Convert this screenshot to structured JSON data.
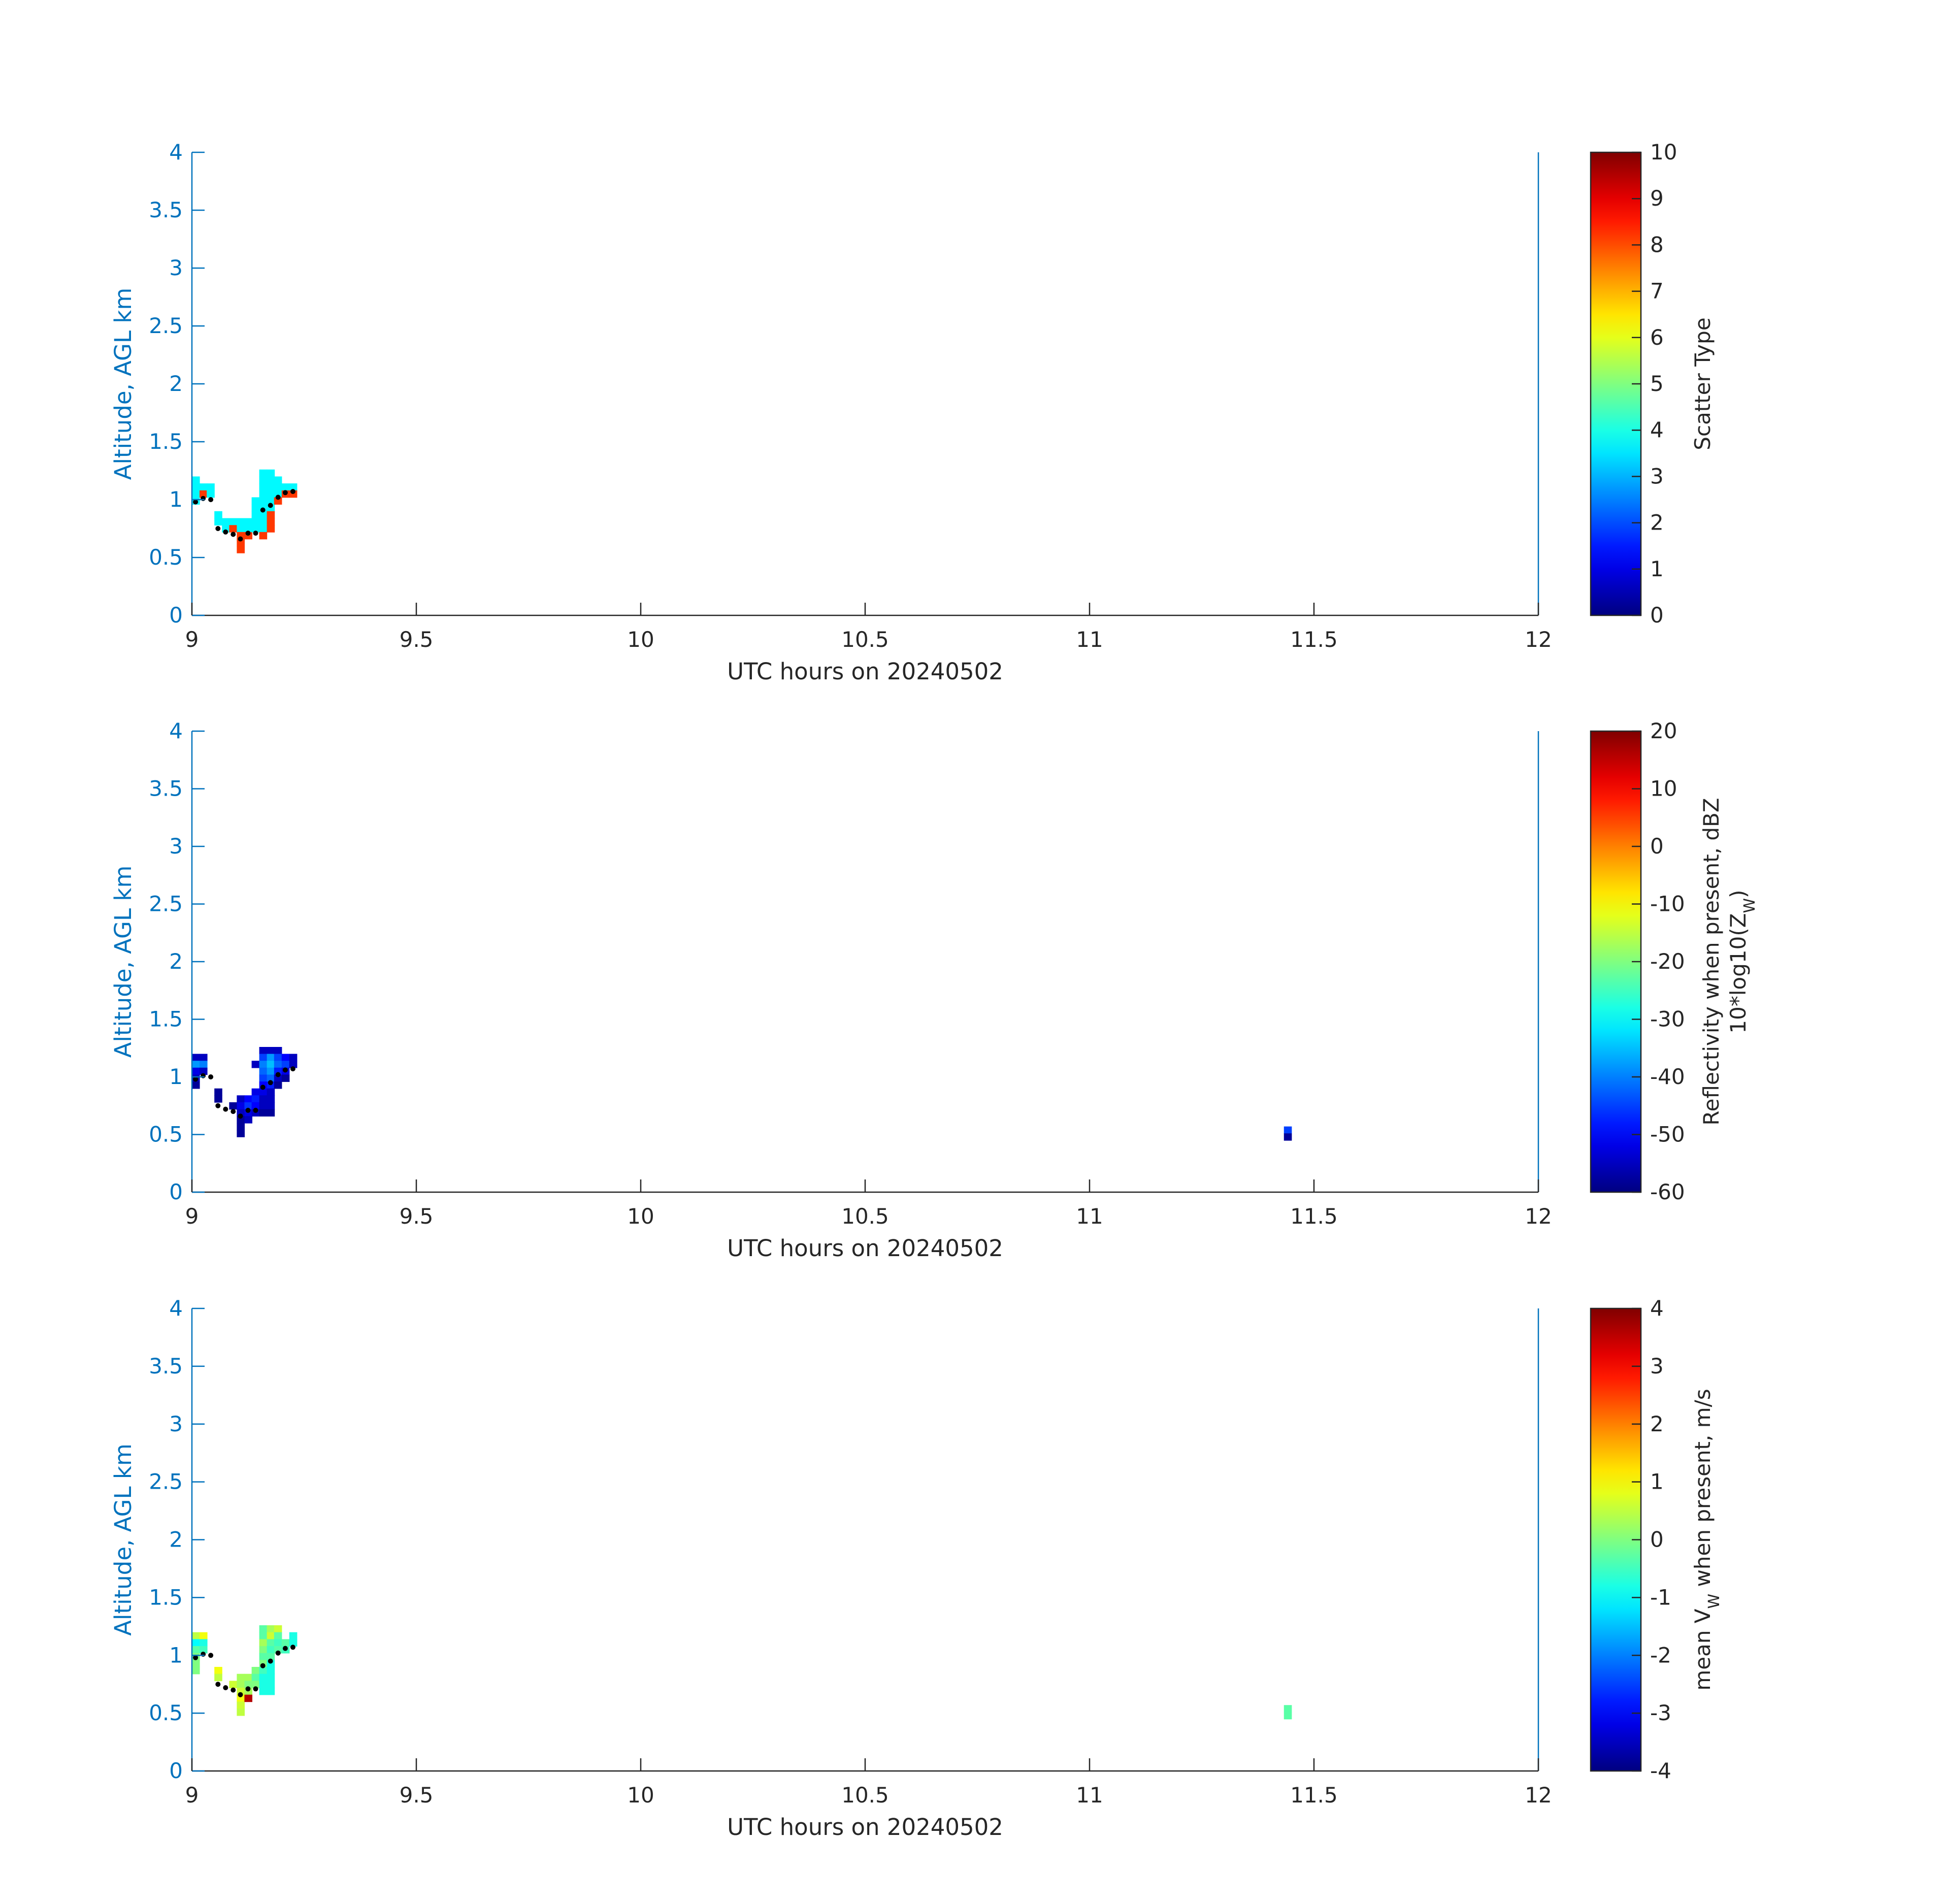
{
  "colors": {
    "axis_y": "#0072BD",
    "axis_x": "#262626",
    "dots": "#000000",
    "background": "#ffffff"
  },
  "chart_data": [
    {
      "type": "heatmap",
      "name": "scatter-type",
      "xlabel": "UTC hours on 20240502",
      "ylabel": "Altitude, AGL km",
      "xlim": [
        9,
        12
      ],
      "ylim": [
        0,
        4
      ],
      "x_ticks": [
        "9",
        "9.5",
        "10",
        "10.5",
        "11",
        "11.5",
        "12"
      ],
      "y_ticks": [
        "0",
        "0.5",
        "1",
        "1.5",
        "2",
        "2.5",
        "3",
        "3.5",
        "4"
      ],
      "colorbar": {
        "label": "Scatter Type",
        "label2": "",
        "label_sub": "",
        "label2_sub": "",
        "label2_suffix": "",
        "range": [
          0,
          10
        ],
        "ticks": [
          "0",
          "1",
          "2",
          "3",
          "4",
          "5",
          "6",
          "7",
          "8",
          "9",
          "10"
        ]
      },
      "cell_width_h": 0.0167,
      "cell_height_km": 0.06,
      "cells": [
        [
          9.0,
          1.14,
          3.7
        ],
        [
          9.0,
          1.08,
          3.7
        ],
        [
          9.0,
          1.02,
          3.7
        ],
        [
          9.0,
          0.96,
          3.7
        ],
        [
          9.017,
          1.08,
          3.7
        ],
        [
          9.017,
          1.02,
          8.2
        ],
        [
          9.033,
          1.08,
          3.7
        ],
        [
          9.033,
          1.02,
          3.7
        ],
        [
          9.05,
          0.84,
          3.7
        ],
        [
          9.05,
          0.78,
          3.7
        ],
        [
          9.067,
          0.78,
          3.7
        ],
        [
          9.067,
          0.72,
          3.7
        ],
        [
          9.083,
          0.78,
          3.7
        ],
        [
          9.083,
          0.72,
          8.2
        ],
        [
          9.1,
          0.78,
          3.7
        ],
        [
          9.1,
          0.72,
          3.7
        ],
        [
          9.1,
          0.66,
          8.2
        ],
        [
          9.1,
          0.6,
          8.2
        ],
        [
          9.1,
          0.54,
          8.2
        ],
        [
          9.117,
          0.78,
          3.7
        ],
        [
          9.117,
          0.72,
          3.7
        ],
        [
          9.117,
          0.66,
          8.2
        ],
        [
          9.133,
          0.96,
          3.7
        ],
        [
          9.133,
          0.9,
          3.7
        ],
        [
          9.133,
          0.84,
          3.7
        ],
        [
          9.133,
          0.78,
          3.7
        ],
        [
          9.133,
          0.72,
          3.7
        ],
        [
          9.15,
          1.2,
          3.7
        ],
        [
          9.15,
          1.14,
          3.7
        ],
        [
          9.15,
          1.08,
          3.7
        ],
        [
          9.15,
          1.02,
          3.7
        ],
        [
          9.15,
          0.96,
          3.7
        ],
        [
          9.15,
          0.9,
          3.7
        ],
        [
          9.15,
          0.84,
          3.7
        ],
        [
          9.15,
          0.78,
          3.7
        ],
        [
          9.15,
          0.72,
          3.7
        ],
        [
          9.15,
          0.66,
          8.2
        ],
        [
          9.167,
          1.2,
          3.7
        ],
        [
          9.167,
          1.14,
          3.7
        ],
        [
          9.167,
          1.08,
          3.7
        ],
        [
          9.167,
          1.02,
          3.7
        ],
        [
          9.167,
          0.96,
          3.7
        ],
        [
          9.167,
          0.9,
          3.7
        ],
        [
          9.167,
          0.84,
          8.2
        ],
        [
          9.167,
          0.78,
          8.2
        ],
        [
          9.167,
          0.72,
          8.2
        ],
        [
          9.183,
          1.14,
          3.7
        ],
        [
          9.183,
          1.08,
          3.7
        ],
        [
          9.183,
          1.02,
          3.7
        ],
        [
          9.183,
          0.96,
          8.2
        ],
        [
          9.2,
          1.08,
          3.7
        ],
        [
          9.2,
          1.02,
          8.2
        ],
        [
          9.217,
          1.08,
          3.7
        ],
        [
          9.217,
          1.02,
          8.2
        ]
      ],
      "dots": [
        [
          9.008,
          0.98
        ],
        [
          9.025,
          1.01
        ],
        [
          9.042,
          1.0
        ],
        [
          9.058,
          0.75
        ],
        [
          9.075,
          0.72
        ],
        [
          9.092,
          0.7
        ],
        [
          9.108,
          0.66
        ],
        [
          9.125,
          0.71
        ],
        [
          9.142,
          0.71
        ],
        [
          9.158,
          0.91
        ],
        [
          9.175,
          0.95
        ],
        [
          9.192,
          1.02
        ],
        [
          9.208,
          1.06
        ],
        [
          9.225,
          1.07
        ]
      ]
    },
    {
      "type": "heatmap",
      "name": "reflectivity",
      "xlabel": "UTC hours on 20240502",
      "ylabel": "Altitude, AGL km",
      "xlim": [
        9,
        12
      ],
      "ylim": [
        0,
        4
      ],
      "x_ticks": [
        "9",
        "9.5",
        "10",
        "10.5",
        "11",
        "11.5",
        "12"
      ],
      "y_ticks": [
        "0",
        "0.5",
        "1",
        "1.5",
        "2",
        "2.5",
        "3",
        "3.5",
        "4"
      ],
      "colorbar": {
        "label": "Reflectivity when present, dBZ",
        "label2": "10*log10(Z",
        "label_sub": "",
        "label2_sub": "W",
        "label2_suffix": ")",
        "range": [
          -60,
          20
        ],
        "ticks": [
          "-60",
          "-50",
          "-40",
          "-30",
          "-20",
          "-10",
          "0",
          "10",
          "20"
        ]
      },
      "cell_width_h": 0.0167,
      "cell_height_km": 0.06,
      "cells": [
        [
          9.0,
          1.14,
          -55
        ],
        [
          9.0,
          1.08,
          -38
        ],
        [
          9.0,
          1.02,
          -52
        ],
        [
          9.0,
          0.96,
          -55
        ],
        [
          9.0,
          0.9,
          -58
        ],
        [
          9.017,
          1.14,
          -55
        ],
        [
          9.017,
          1.08,
          -40
        ],
        [
          9.017,
          1.02,
          -55
        ],
        [
          9.05,
          0.84,
          -58
        ],
        [
          9.05,
          0.78,
          -58
        ],
        [
          9.083,
          0.72,
          -58
        ],
        [
          9.1,
          0.78,
          -55
        ],
        [
          9.1,
          0.72,
          -52
        ],
        [
          9.1,
          0.66,
          -55
        ],
        [
          9.1,
          0.6,
          -58
        ],
        [
          9.1,
          0.54,
          -58
        ],
        [
          9.1,
          0.48,
          -58
        ],
        [
          9.117,
          0.78,
          -50
        ],
        [
          9.117,
          0.72,
          -46
        ],
        [
          9.117,
          0.66,
          -52
        ],
        [
          9.117,
          0.6,
          -55
        ],
        [
          9.133,
          1.08,
          -55
        ],
        [
          9.133,
          0.84,
          -52
        ],
        [
          9.133,
          0.78,
          -48
        ],
        [
          9.133,
          0.72,
          -50
        ],
        [
          9.133,
          0.66,
          -55
        ],
        [
          9.15,
          1.2,
          -55
        ],
        [
          9.15,
          1.14,
          -45
        ],
        [
          9.15,
          1.08,
          -40
        ],
        [
          9.15,
          1.02,
          -42
        ],
        [
          9.15,
          0.96,
          -45
        ],
        [
          9.15,
          0.9,
          -50
        ],
        [
          9.15,
          0.84,
          -52
        ],
        [
          9.15,
          0.78,
          -55
        ],
        [
          9.15,
          0.72,
          -55
        ],
        [
          9.15,
          0.66,
          -58
        ],
        [
          9.167,
          1.2,
          -55
        ],
        [
          9.167,
          1.14,
          -38
        ],
        [
          9.167,
          1.08,
          -35
        ],
        [
          9.167,
          1.02,
          -38
        ],
        [
          9.167,
          0.96,
          -42
        ],
        [
          9.167,
          0.9,
          -48
        ],
        [
          9.167,
          0.84,
          -55
        ],
        [
          9.167,
          0.78,
          -55
        ],
        [
          9.167,
          0.72,
          -55
        ],
        [
          9.167,
          0.66,
          -58
        ],
        [
          9.183,
          1.2,
          -55
        ],
        [
          9.183,
          1.14,
          -45
        ],
        [
          9.183,
          1.08,
          -42
        ],
        [
          9.183,
          1.02,
          -48
        ],
        [
          9.183,
          0.96,
          -55
        ],
        [
          9.183,
          0.9,
          -58
        ],
        [
          9.2,
          1.14,
          -50
        ],
        [
          9.2,
          1.08,
          -45
        ],
        [
          9.2,
          1.02,
          -52
        ],
        [
          9.2,
          0.96,
          -58
        ],
        [
          9.217,
          1.14,
          -55
        ],
        [
          9.217,
          1.08,
          -55
        ],
        [
          11.433,
          0.51,
          -45
        ],
        [
          11.433,
          0.45,
          -58
        ]
      ],
      "dots": [
        [
          9.008,
          0.98
        ],
        [
          9.025,
          1.01
        ],
        [
          9.042,
          1.0
        ],
        [
          9.058,
          0.75
        ],
        [
          9.075,
          0.72
        ],
        [
          9.092,
          0.7
        ],
        [
          9.108,
          0.66
        ],
        [
          9.125,
          0.71
        ],
        [
          9.142,
          0.71
        ],
        [
          9.158,
          0.91
        ],
        [
          9.175,
          0.95
        ],
        [
          9.192,
          1.02
        ],
        [
          9.208,
          1.06
        ],
        [
          9.225,
          1.07
        ]
      ]
    },
    {
      "type": "heatmap",
      "name": "mean-velocity",
      "xlabel": "UTC hours on 20240502",
      "ylabel": "Altitude, AGL km",
      "xlim": [
        9,
        12
      ],
      "ylim": [
        0,
        4
      ],
      "x_ticks": [
        "9",
        "9.5",
        "10",
        "10.5",
        "11",
        "11.5",
        "12"
      ],
      "y_ticks": [
        "0",
        "0.5",
        "1",
        "1.5",
        "2",
        "2.5",
        "3",
        "3.5",
        "4"
      ],
      "colorbar": {
        "label": "mean V",
        "label_sub": "W",
        "label_suffix": " when present, m/s",
        "label2": "",
        "label2_sub": "",
        "label2_suffix": "",
        "range": [
          -4,
          4
        ],
        "ticks": [
          "-4",
          "-3",
          "-2",
          "-1",
          "0",
          "1",
          "2",
          "3",
          "4"
        ]
      },
      "cell_width_h": 0.0167,
      "cell_height_km": 0.06,
      "cells": [
        [
          9.0,
          1.14,
          0.5
        ],
        [
          9.0,
          1.08,
          -1.0
        ],
        [
          9.0,
          1.02,
          -0.3
        ],
        [
          9.0,
          0.96,
          0.0
        ],
        [
          9.0,
          0.9,
          0.0
        ],
        [
          9.0,
          0.84,
          0.0
        ],
        [
          9.017,
          1.14,
          0.9
        ],
        [
          9.017,
          1.08,
          -0.8
        ],
        [
          9.017,
          1.02,
          -0.5
        ],
        [
          9.05,
          0.84,
          0.9
        ],
        [
          9.05,
          0.78,
          0.5
        ],
        [
          9.083,
          0.72,
          0.6
        ],
        [
          9.1,
          0.78,
          0.3
        ],
        [
          9.1,
          0.72,
          0.3
        ],
        [
          9.1,
          0.66,
          0.6
        ],
        [
          9.1,
          0.6,
          0.9
        ],
        [
          9.1,
          0.54,
          0.6
        ],
        [
          9.1,
          0.48,
          0.5
        ],
        [
          9.117,
          0.78,
          0.3
        ],
        [
          9.117,
          0.72,
          0.0
        ],
        [
          9.117,
          0.66,
          0.3
        ],
        [
          9.117,
          0.6,
          3.6
        ],
        [
          9.133,
          0.84,
          0.0
        ],
        [
          9.133,
          0.78,
          -0.3
        ],
        [
          9.133,
          0.72,
          0.0
        ],
        [
          9.15,
          1.2,
          -0.3
        ],
        [
          9.15,
          1.14,
          -0.3
        ],
        [
          9.15,
          1.08,
          0.3
        ],
        [
          9.15,
          1.02,
          0.0
        ],
        [
          9.15,
          0.96,
          -0.3
        ],
        [
          9.15,
          0.9,
          0.0
        ],
        [
          9.15,
          0.84,
          -0.5
        ],
        [
          9.15,
          0.78,
          -0.8
        ],
        [
          9.15,
          0.72,
          -0.8
        ],
        [
          9.15,
          0.66,
          -0.8
        ],
        [
          9.167,
          1.2,
          0.3
        ],
        [
          9.167,
          1.14,
          0.6
        ],
        [
          9.167,
          1.08,
          -0.3
        ],
        [
          9.167,
          1.02,
          -0.5
        ],
        [
          9.167,
          0.96,
          -0.3
        ],
        [
          9.167,
          0.9,
          -0.8
        ],
        [
          9.167,
          0.84,
          -0.8
        ],
        [
          9.167,
          0.78,
          -0.8
        ],
        [
          9.167,
          0.72,
          -0.8
        ],
        [
          9.167,
          0.66,
          -0.8
        ],
        [
          9.183,
          1.2,
          0.6
        ],
        [
          9.183,
          1.14,
          -0.3
        ],
        [
          9.183,
          1.08,
          -0.5
        ],
        [
          9.183,
          1.02,
          -0.3
        ],
        [
          9.2,
          1.08,
          -0.3
        ],
        [
          9.2,
          1.02,
          -0.5
        ],
        [
          9.217,
          1.14,
          -0.8
        ],
        [
          9.217,
          1.08,
          -0.8
        ],
        [
          11.433,
          0.51,
          -0.3
        ],
        [
          11.433,
          0.45,
          -0.3
        ]
      ],
      "dots": [
        [
          9.008,
          0.98
        ],
        [
          9.025,
          1.01
        ],
        [
          9.042,
          1.0
        ],
        [
          9.058,
          0.75
        ],
        [
          9.075,
          0.72
        ],
        [
          9.092,
          0.7
        ],
        [
          9.108,
          0.66
        ],
        [
          9.125,
          0.71
        ],
        [
          9.142,
          0.71
        ],
        [
          9.158,
          0.91
        ],
        [
          9.175,
          0.95
        ],
        [
          9.192,
          1.02
        ],
        [
          9.208,
          1.06
        ],
        [
          9.225,
          1.07
        ]
      ]
    }
  ]
}
